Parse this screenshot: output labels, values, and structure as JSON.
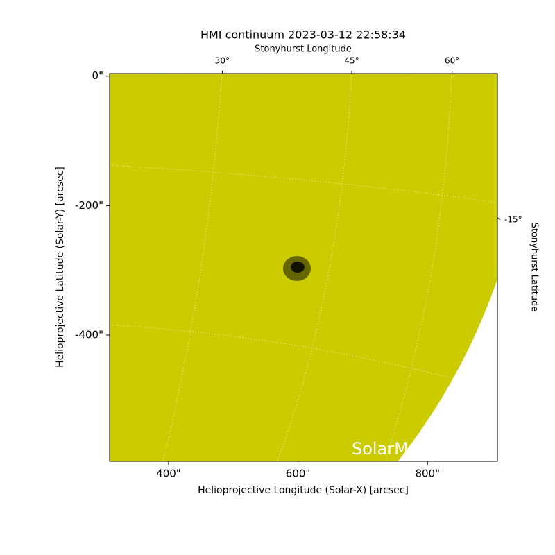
{
  "chart_data": {
    "type": "image",
    "title": "HMI continuum 2023-03-12 22:58:34",
    "xlabel": "Helioprojective Longitude (Solar-X) [arcsec]",
    "ylabel": "Helioprojective Latitude (Solar-Y) [arcsec]",
    "x2label": "Stonyhurst Longitude",
    "y2label": "Stonyhurst Latitude",
    "watermark": "SolarMonitor.org",
    "xlim": [
      309,
      908
    ],
    "ylim": [
      -595,
      4
    ],
    "xticks": [
      {
        "value": 400,
        "label": "400\""
      },
      {
        "value": 600,
        "label": "600\""
      },
      {
        "value": 800,
        "label": "800\""
      }
    ],
    "yticks": [
      {
        "value": 0,
        "label": "0\""
      },
      {
        "value": -200,
        "label": "-200\""
      },
      {
        "value": -400,
        "label": "-400\""
      }
    ],
    "x2ticks": [
      {
        "value": 483,
        "label": "30°"
      },
      {
        "value": 683,
        "label": "45°"
      },
      {
        "value": 838,
        "label": "60°"
      }
    ],
    "y2ticks": [
      {
        "value": -222,
        "label": "-15°"
      }
    ]
  }
}
